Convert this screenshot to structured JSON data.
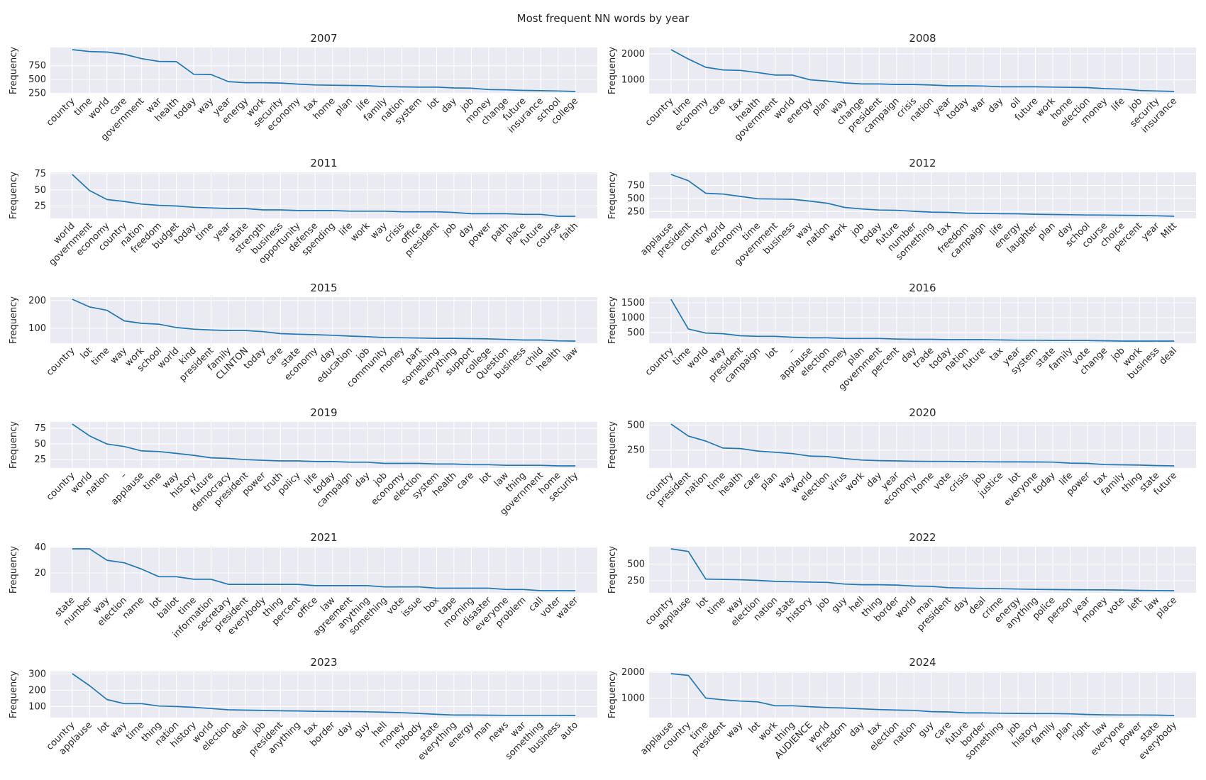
{
  "figure": {
    "title": "Most frequent NN words by year"
  },
  "chart_data": [
    {
      "type": "line",
      "title": "2007",
      "ylabel": "Frequency",
      "grid": true,
      "yticks": [
        250,
        500,
        750
      ],
      "categories": [
        "country",
        "time",
        "world",
        "care",
        "government",
        "war",
        "health",
        "today",
        "way",
        "year",
        "energy",
        "work",
        "security",
        "economy",
        "tax",
        "home",
        "plan",
        "life",
        "family",
        "nation",
        "system",
        "lot",
        "day",
        "job",
        "money",
        "change",
        "future",
        "insurance",
        "school",
        "college"
      ],
      "values": [
        1045,
        1010,
        1000,
        960,
        880,
        830,
        825,
        595,
        590,
        460,
        440,
        440,
        435,
        415,
        400,
        395,
        390,
        385,
        370,
        365,
        360,
        360,
        345,
        340,
        315,
        310,
        300,
        295,
        290,
        280
      ]
    },
    {
      "type": "line",
      "title": "2008",
      "ylabel": "Frequency",
      "grid": true,
      "yticks": [
        1000,
        2000
      ],
      "categories": [
        "country",
        "time",
        "economy",
        "care",
        "tax",
        "health",
        "government",
        "world",
        "energy",
        "plan",
        "way",
        "change",
        "president",
        "campaign",
        "crisis",
        "nation",
        "year",
        "today",
        "war",
        "day",
        "oil",
        "future",
        "work",
        "home",
        "election",
        "money",
        "life",
        "job",
        "security",
        "insurance"
      ],
      "values": [
        2160,
        1800,
        1480,
        1380,
        1360,
        1280,
        1180,
        1180,
        1000,
        950,
        880,
        840,
        840,
        820,
        820,
        800,
        770,
        770,
        760,
        730,
        730,
        730,
        720,
        710,
        700,
        660,
        640,
        590,
        570,
        550
      ]
    },
    {
      "type": "line",
      "title": "2011",
      "ylabel": "Frequency",
      "grid": true,
      "yticks": [
        25,
        50,
        75
      ],
      "categories": [
        "world",
        "government",
        "economy",
        "country",
        "nation",
        "freedom",
        "budget",
        "today",
        "time",
        "year",
        "state",
        "strength",
        "business",
        "opportunity",
        "defense",
        "spending",
        "life",
        "work",
        "way",
        "crisis",
        "office",
        "president",
        "job",
        "day",
        "power",
        "path",
        "place",
        "future",
        "course",
        "faith"
      ],
      "values": [
        74,
        49,
        35,
        32,
        28,
        26,
        25,
        23,
        22,
        21,
        21,
        19,
        19,
        18,
        18,
        18,
        17,
        17,
        17,
        16,
        16,
        16,
        15,
        13,
        13,
        13,
        12,
        12,
        9,
        9
      ]
    },
    {
      "type": "line",
      "title": "2012",
      "ylabel": "Frequency",
      "grid": true,
      "yticks": [
        250,
        500,
        750
      ],
      "categories": [
        "applause",
        "president",
        "country",
        "world",
        "economy",
        "time",
        "government",
        "business",
        "way",
        "nation",
        "work",
        "job",
        "today",
        "future",
        "number",
        "something",
        "tax",
        "freedom",
        "campaign",
        "life",
        "energy",
        "laughter",
        "plan",
        "day",
        "school",
        "course",
        "choice",
        "percent",
        "year",
        "Mitt"
      ],
      "values": [
        960,
        840,
        600,
        585,
        540,
        495,
        490,
        485,
        450,
        410,
        330,
        300,
        280,
        275,
        255,
        240,
        235,
        220,
        215,
        210,
        208,
        200,
        195,
        190,
        185,
        183,
        180,
        175,
        170,
        160
      ]
    },
    {
      "type": "line",
      "title": "2015",
      "ylabel": "Frequency",
      "grid": true,
      "yticks": [
        100,
        200
      ],
      "categories": [
        "country",
        "lot",
        "time",
        "way",
        "work",
        "school",
        "world",
        "kind",
        "president",
        "family",
        "CLINTON",
        "today",
        "care",
        "state",
        "economy",
        "day",
        "education",
        "job",
        "community",
        "money",
        "part",
        "something",
        "everything",
        "support",
        "college",
        "Question",
        "business",
        "child",
        "health",
        "law"
      ],
      "values": [
        205,
        177,
        165,
        127,
        118,
        115,
        103,
        97,
        94,
        92,
        92,
        88,
        81,
        79,
        77,
        75,
        72,
        70,
        67,
        66,
        65,
        64,
        64,
        63,
        62,
        60,
        58,
        58,
        55,
        54
      ]
    },
    {
      "type": "line",
      "title": "2016",
      "ylabel": "Frequency",
      "grid": true,
      "yticks": [
        500,
        1000,
        1500
      ],
      "categories": [
        "country",
        "time",
        "world",
        "way",
        "president",
        "campaign",
        "lot",
        "–",
        "applause",
        "election",
        "money",
        "plan",
        "government",
        "percent",
        "day",
        "trade",
        "today",
        "nation",
        "future",
        "tax",
        "year",
        "system",
        "state",
        "family",
        "vote",
        "change",
        "job",
        "work",
        "business",
        "deal"
      ],
      "values": [
        1620,
        620,
        480,
        460,
        390,
        370,
        370,
        340,
        320,
        320,
        300,
        300,
        300,
        280,
        270,
        270,
        260,
        260,
        260,
        250,
        240,
        240,
        230,
        230,
        230,
        220,
        210,
        210,
        210,
        210
      ]
    },
    {
      "type": "line",
      "title": "2019",
      "ylabel": "Frequency",
      "grid": true,
      "yticks": [
        25,
        50,
        75
      ],
      "categories": [
        "country",
        "world",
        "nation",
        "–",
        "applause",
        "time",
        "way",
        "history",
        "future",
        "democracy",
        "president",
        "power",
        "truth",
        "policy",
        "life",
        "today",
        "campaign",
        "day",
        "job",
        "economy",
        "election",
        "system",
        "health",
        "care",
        "lot",
        "law",
        "thing",
        "government",
        "home",
        "security"
      ],
      "values": [
        82,
        63,
        50,
        46,
        39,
        38,
        35,
        32,
        28,
        27,
        25,
        24,
        23,
        23,
        22,
        22,
        21,
        21,
        19,
        19,
        19,
        18,
        18,
        17,
        17,
        16,
        16,
        16,
        15,
        15
      ]
    },
    {
      "type": "line",
      "title": "2020",
      "ylabel": "Frequency",
      "grid": true,
      "yticks": [
        250,
        500
      ],
      "categories": [
        "country",
        "president",
        "nation",
        "time",
        "health",
        "care",
        "plan",
        "way",
        "world",
        "election",
        "virus",
        "work",
        "day",
        "year",
        "economy",
        "home",
        "vote",
        "crisis",
        "job",
        "justice",
        "lot",
        "everyone",
        "today",
        "life",
        "power",
        "tax",
        "family",
        "thing",
        "state",
        "future"
      ],
      "values": [
        510,
        390,
        340,
        270,
        265,
        240,
        228,
        215,
        190,
        185,
        165,
        150,
        145,
        142,
        138,
        137,
        137,
        135,
        133,
        132,
        132,
        131,
        130,
        120,
        117,
        105,
        103,
        100,
        95,
        92
      ]
    },
    {
      "type": "line",
      "title": "2021",
      "ylabel": "Frequency",
      "grid": true,
      "yticks": [
        20,
        40
      ],
      "categories": [
        "state",
        "number",
        "way",
        "election",
        "name",
        "lot",
        "ballot",
        "time",
        "information",
        "secretary",
        "president",
        "everybody",
        "thing",
        "percent",
        "office",
        "law",
        "agreement",
        "anything",
        "something",
        "vote",
        "issue",
        "box",
        "tape",
        "morning",
        "disaster",
        "everyone",
        "problem",
        "call",
        "voter",
        "water"
      ],
      "values": [
        39,
        39,
        30,
        28,
        23,
        17,
        17,
        15,
        15,
        11,
        11,
        11,
        11,
        11,
        10,
        10,
        10,
        10,
        9,
        9,
        9,
        8,
        8,
        8,
        8,
        7,
        7,
        6,
        6,
        6
      ]
    },
    {
      "type": "line",
      "title": "2022",
      "ylabel": "Frequency",
      "grid": true,
      "yticks": [
        250,
        500
      ],
      "categories": [
        "country",
        "applause",
        "lot",
        "time",
        "way",
        "election",
        "nation",
        "state",
        "history",
        "job",
        "guy",
        "hell",
        "thing",
        "border",
        "world",
        "man",
        "president",
        "day",
        "deal",
        "crime",
        "energy",
        "anything",
        "police",
        "person",
        "year",
        "money",
        "vote",
        "left",
        "law",
        "place"
      ],
      "values": [
        730,
        690,
        275,
        270,
        265,
        255,
        240,
        235,
        230,
        225,
        200,
        190,
        190,
        185,
        170,
        165,
        145,
        140,
        135,
        130,
        125,
        120,
        118,
        115,
        113,
        112,
        110,
        105,
        103,
        100
      ]
    },
    {
      "type": "line",
      "title": "2023",
      "ylabel": "Frequency",
      "grid": true,
      "yticks": [
        100,
        200,
        300
      ],
      "categories": [
        "country",
        "applause",
        "lot",
        "way",
        "time",
        "thing",
        "nation",
        "history",
        "world",
        "election",
        "deal",
        "job",
        "president",
        "anything",
        "tax",
        "border",
        "day",
        "guy",
        "hell",
        "money",
        "nobody",
        "state",
        "everything",
        "energy",
        "man",
        "news",
        "war",
        "something",
        "business",
        "auto"
      ],
      "values": [
        302,
        228,
        143,
        118,
        118,
        103,
        100,
        95,
        88,
        80,
        78,
        76,
        74,
        73,
        71,
        70,
        69,
        68,
        65,
        62,
        58,
        52,
        48,
        48,
        47,
        46,
        46,
        46,
        46,
        45
      ]
    },
    {
      "type": "line",
      "title": "2024",
      "ylabel": "Frequency",
      "grid": true,
      "yticks": [
        1000,
        2000
      ],
      "categories": [
        "applause",
        "country",
        "time",
        "president",
        "way",
        "lot",
        "work",
        "thing",
        "AUDIENCE",
        "world",
        "freedom",
        "day",
        "tax",
        "election",
        "nation",
        "guy",
        "care",
        "future",
        "border",
        "something",
        "job",
        "history",
        "family",
        "plan",
        "right",
        "law",
        "everyone",
        "power",
        "state",
        "everybody"
      ],
      "values": [
        1950,
        1880,
        1000,
        930,
        880,
        850,
        700,
        700,
        660,
        630,
        610,
        580,
        550,
        530,
        520,
        470,
        460,
        420,
        420,
        410,
        400,
        395,
        395,
        385,
        360,
        345,
        340,
        340,
        335,
        320
      ]
    }
  ]
}
